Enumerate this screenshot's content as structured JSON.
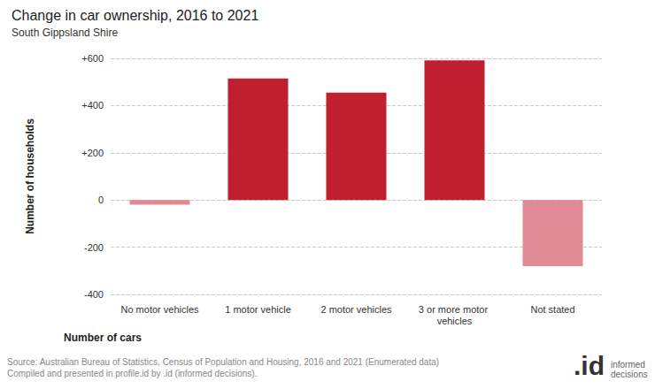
{
  "chart_data": {
    "type": "bar",
    "title": "Change in car ownership, 2016 to 2021",
    "subtitle": "South Gippsland Shire",
    "x_label": "Number of cars",
    "y_label": "Number of households",
    "categories": [
      "No motor vehicles",
      "1 motor vehicle",
      "2 motor vehicles",
      "3 or more motor vehicles",
      "Not stated"
    ],
    "values": [
      -20,
      515,
      455,
      592,
      -280
    ],
    "colors": [
      "#e08a96",
      "#c01f2f",
      "#c01f2f",
      "#c01f2f",
      "#e08a96"
    ],
    "ylim": [
      -400,
      600
    ],
    "yticks": [
      -400,
      -200,
      0,
      {
        "value": 200,
        "label": "+200"
      },
      {
        "value": 400,
        "label": "+400"
      },
      {
        "value": 600,
        "label": "+600"
      }
    ],
    "grid": true,
    "source": "Source: Australian Bureau of Statistics, Census of Population and Housing, 2016 and 2021 (Enumerated data)",
    "credit": "Compiled and presented in profile.id by .id (informed decisions).",
    "logo": ".id",
    "logo_text": "informed decisions"
  }
}
